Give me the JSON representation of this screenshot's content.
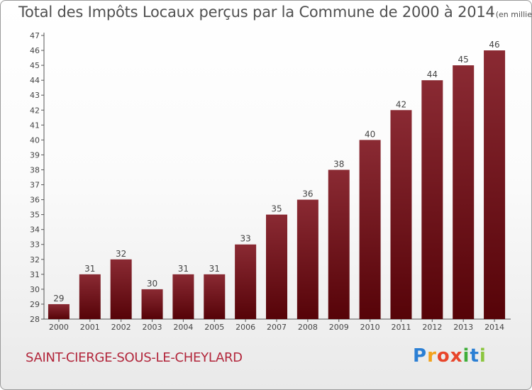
{
  "title": "Total des Impôts Locaux perçus par la Commune de 2000 à 2014",
  "title_unit": "(en milliers d'€)",
  "commune": "SAINT-CIERGE-SOUS-LE-CHEYLARD",
  "logo": {
    "letters": [
      "P",
      "r",
      "o",
      "x",
      "i",
      "t",
      "i"
    ],
    "colors": [
      "#2b7fd4",
      "#f2a21b",
      "#e8462b",
      "#e8462b",
      "#3fae3a",
      "#2b7fd4",
      "#8cc63f"
    ]
  },
  "colors": {
    "bar": "#7a1a22",
    "accent": "#b2263b",
    "axis": "#555555"
  },
  "chart_data": {
    "type": "bar",
    "categories": [
      "2000",
      "2001",
      "2002",
      "2003",
      "2004",
      "2005",
      "2006",
      "2007",
      "2008",
      "2009",
      "2010",
      "2011",
      "2012",
      "2013",
      "2014"
    ],
    "values": [
      29,
      31,
      32,
      30,
      31,
      31,
      33,
      35,
      36,
      38,
      40,
      42,
      44,
      45,
      46
    ],
    "value_labels": [
      "29",
      "31",
      "32",
      "30",
      "31",
      "31",
      "33",
      "35",
      "36",
      "38",
      "40",
      "42",
      "44",
      "45",
      "46"
    ],
    "ylim": [
      28,
      47
    ],
    "yticks": [
      "28",
      "29",
      "30",
      "31",
      "32",
      "33",
      "34",
      "35",
      "36",
      "37",
      "38",
      "39",
      "40",
      "41",
      "42",
      "43",
      "44",
      "45",
      "46",
      "47"
    ],
    "grid": false,
    "xlabel": "",
    "ylabel": ""
  }
}
